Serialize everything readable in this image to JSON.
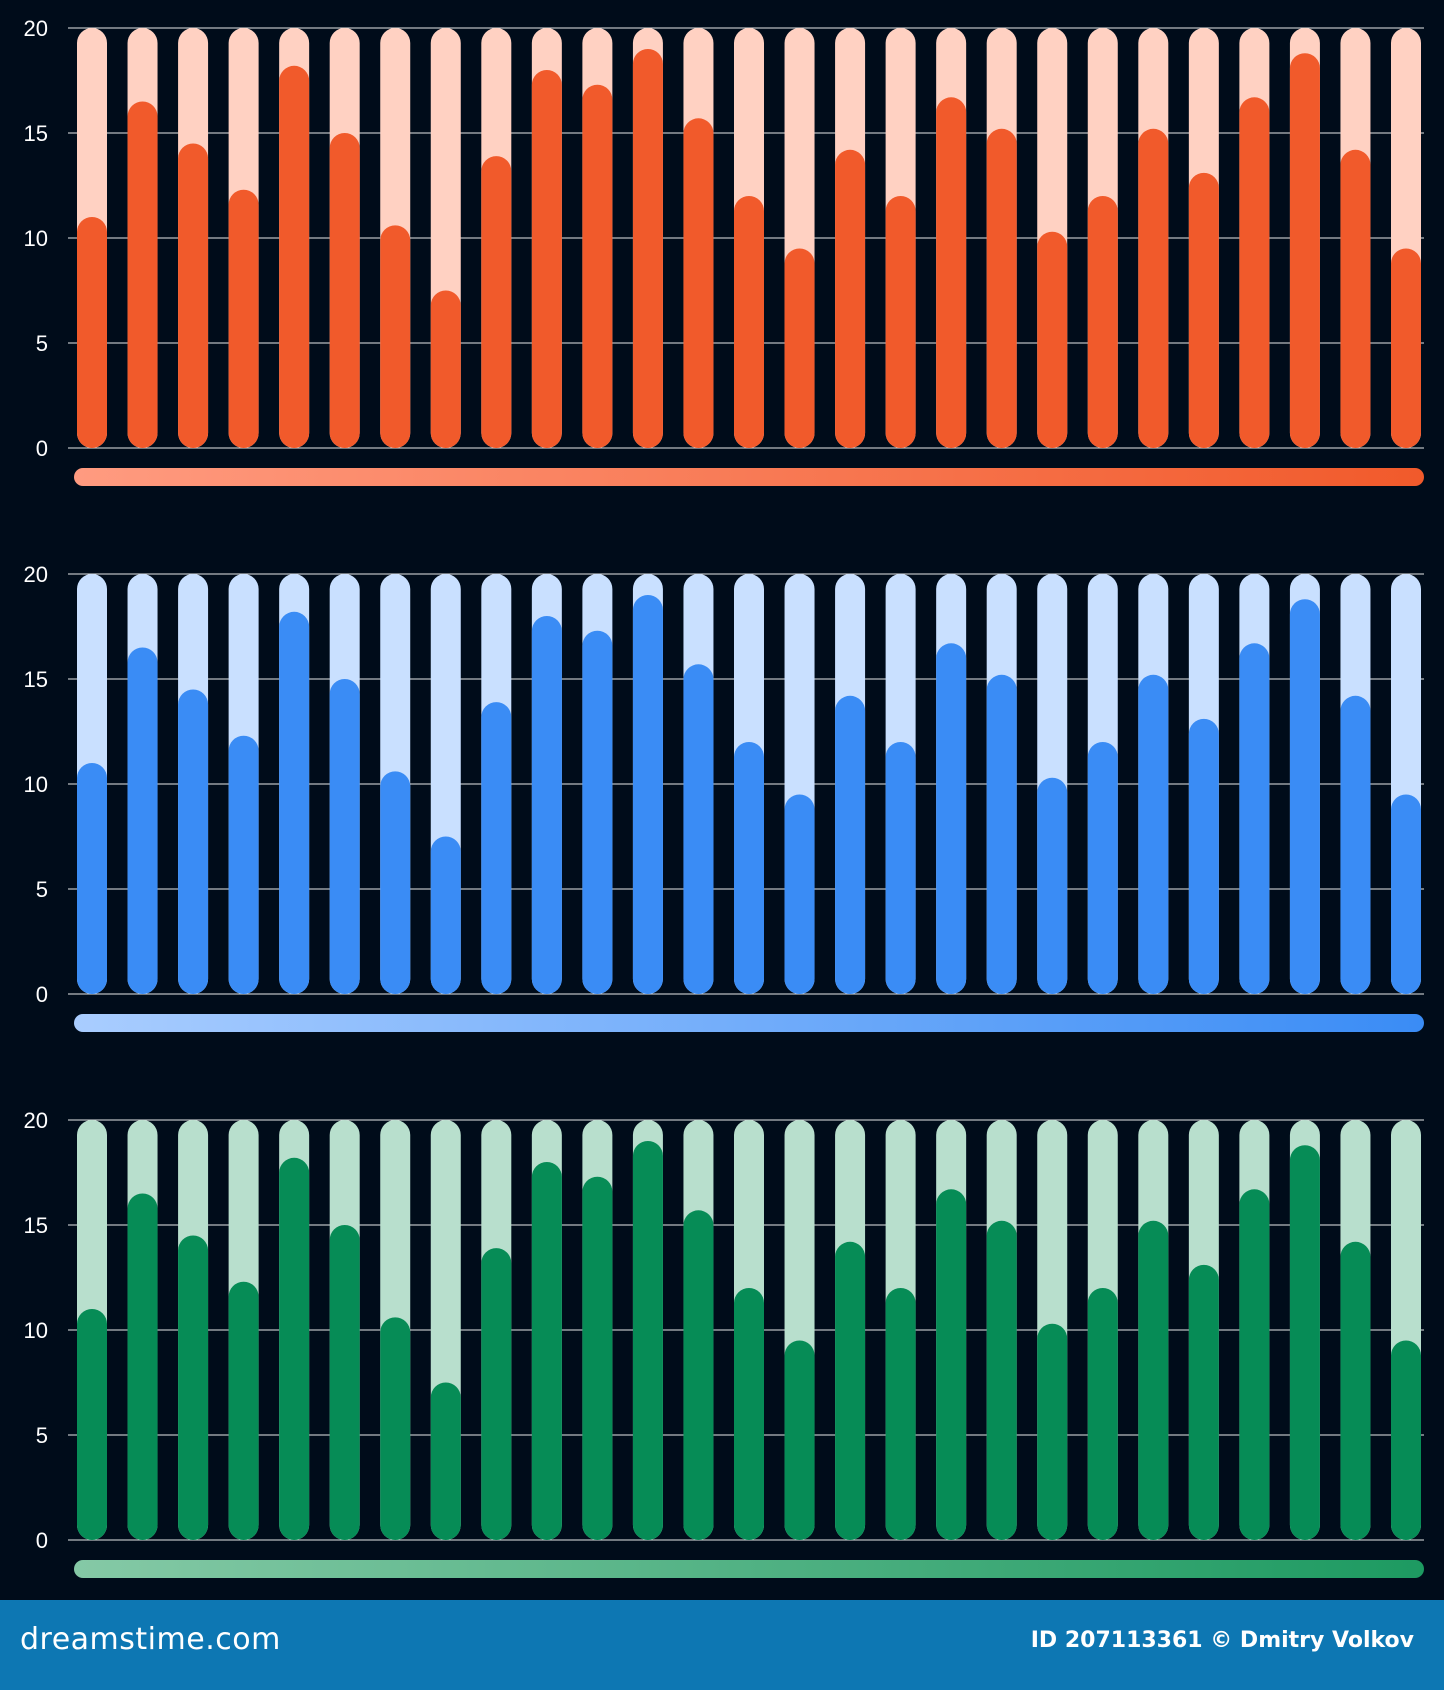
{
  "chart_data": [
    {
      "type": "bar",
      "style": "rounded stacked capsule bars with light track",
      "ylim": [
        0,
        20
      ],
      "yticks": [
        0,
        5,
        10,
        15,
        20
      ],
      "grid": true,
      "values": [
        11,
        16.5,
        14.5,
        12.3,
        18.2,
        15,
        10.6,
        7.5,
        13.9,
        18,
        17.3,
        19,
        15.7,
        12,
        9.5,
        14.2,
        12,
        16.7,
        15.2,
        10.3,
        12,
        15.2,
        13.1,
        16.7,
        18.8,
        14.2,
        9.5
      ],
      "colors": {
        "fill": "#f15a2b",
        "track": "#ffd1c2",
        "bar_gradient": [
          "#ff9b80",
          "#f15a2b"
        ]
      }
    },
    {
      "type": "bar",
      "style": "rounded stacked capsule bars with light track",
      "ylim": [
        0,
        20
      ],
      "yticks": [
        0,
        5,
        10,
        15,
        20
      ],
      "grid": true,
      "values": [
        11,
        16.5,
        14.5,
        12.3,
        18.2,
        15,
        10.6,
        7.5,
        13.9,
        18,
        17.3,
        19,
        15.7,
        12,
        9.5,
        14.2,
        12,
        16.7,
        15.2,
        10.3,
        12,
        15.2,
        13.1,
        16.7,
        18.8,
        14.2,
        9.5
      ],
      "colors": {
        "fill": "#3a8cf5",
        "track": "#c9e0ff",
        "bar_gradient": [
          "#a9cdff",
          "#3a8cf5"
        ]
      }
    },
    {
      "type": "bar",
      "style": "rounded stacked capsule bars with light track",
      "ylim": [
        0,
        20
      ],
      "yticks": [
        0,
        5,
        10,
        15,
        20
      ],
      "grid": true,
      "values": [
        11,
        16.5,
        14.5,
        12.3,
        18.2,
        15,
        10.6,
        7.5,
        13.9,
        18,
        17.3,
        19,
        15.7,
        12,
        9.5,
        14.2,
        12,
        16.7,
        15.2,
        10.3,
        12,
        15.2,
        13.1,
        16.7,
        18.8,
        14.2,
        9.5
      ],
      "colors": {
        "fill": "#068c56",
        "track": "#b8dfcd",
        "bar_gradient": [
          "#85c9a6",
          "#1d9a61"
        ]
      }
    }
  ],
  "footer": {
    "brand": "dreamstime.com",
    "credit": "ID 207113361 © Dmitry Volkov"
  },
  "colors": {
    "background": "#000c1a",
    "footer": "#0d77b3"
  }
}
